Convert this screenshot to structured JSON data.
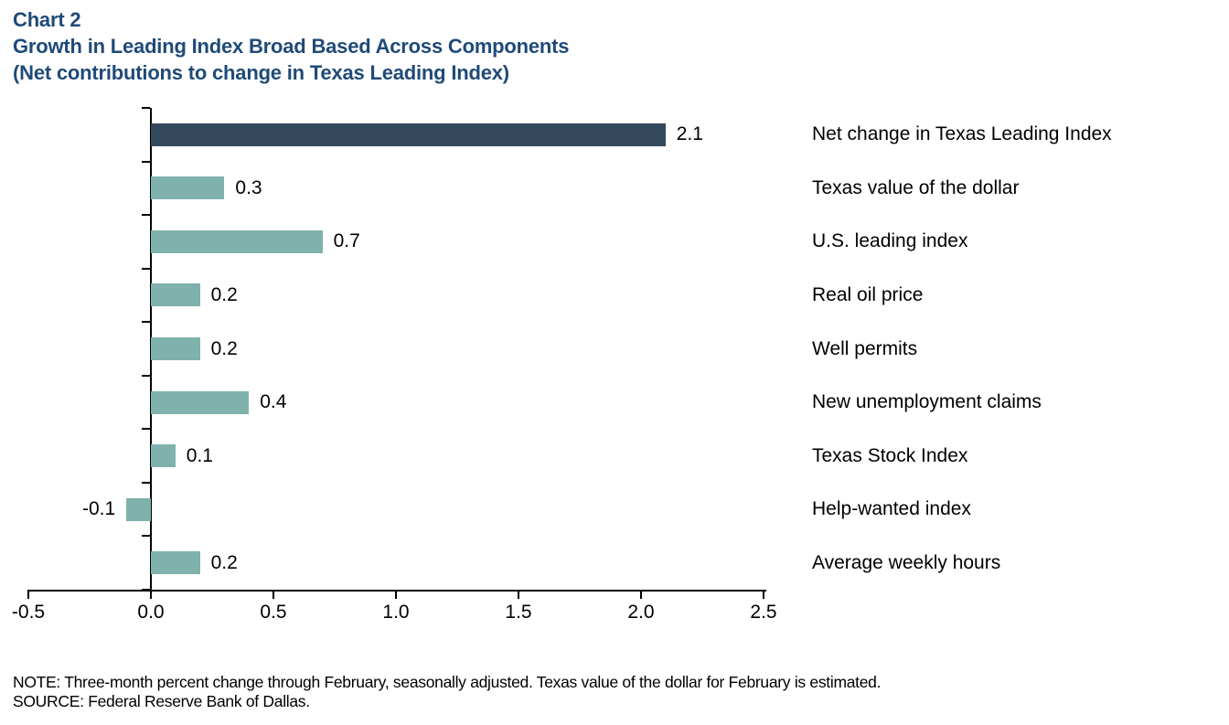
{
  "header": {
    "chart_number": "Chart 2",
    "title": "Growth in Leading Index Broad Based Across Components",
    "subtitle": "(Net contributions to change in Texas Leading Index)"
  },
  "chart_data": {
    "type": "bar",
    "orientation": "horizontal",
    "title": "Growth in Leading Index Broad Based Across Components",
    "subtitle": "(Net contributions to change in Texas Leading Index)",
    "xlabel": "",
    "ylabel": "",
    "xlim": [
      -0.5,
      2.5
    ],
    "x_tick_labels": [
      "-0.5",
      "0.0",
      "0.5",
      "1.0",
      "1.5",
      "2.0",
      "2.5"
    ],
    "grid": false,
    "legend": false,
    "colors": {
      "highlight_bar": "#35495c",
      "default_bar": "#7fb2ac",
      "title_text": "#1f4a78",
      "axis": "#000000"
    },
    "rows": [
      {
        "category": "Net change in Texas Leading Index",
        "value": 2.1,
        "label": "2.1",
        "highlight": true
      },
      {
        "category": "Texas value of the dollar",
        "value": 0.3,
        "label": "0.3",
        "highlight": false
      },
      {
        "category": "U.S. leading index",
        "value": 0.7,
        "label": "0.7",
        "highlight": false
      },
      {
        "category": "Real oil price",
        "value": 0.2,
        "label": "0.2",
        "highlight": false
      },
      {
        "category": "Well permits",
        "value": 0.2,
        "label": "0.2",
        "highlight": false
      },
      {
        "category": "New unemployment claims",
        "value": 0.4,
        "label": "0.4",
        "highlight": false
      },
      {
        "category": "Texas Stock Index",
        "value": 0.1,
        "label": "0.1",
        "highlight": false
      },
      {
        "category": "Help-wanted index",
        "value": -0.1,
        "label": "-0.1",
        "highlight": false
      },
      {
        "category": "Average weekly hours",
        "value": 0.2,
        "label": "0.2",
        "highlight": false
      }
    ]
  },
  "footer": {
    "note": "NOTE: Three-month percent change through February, seasonally adjusted. Texas value of the dollar for February is estimated.",
    "source": "SOURCE: Federal Reserve Bank of Dallas."
  }
}
